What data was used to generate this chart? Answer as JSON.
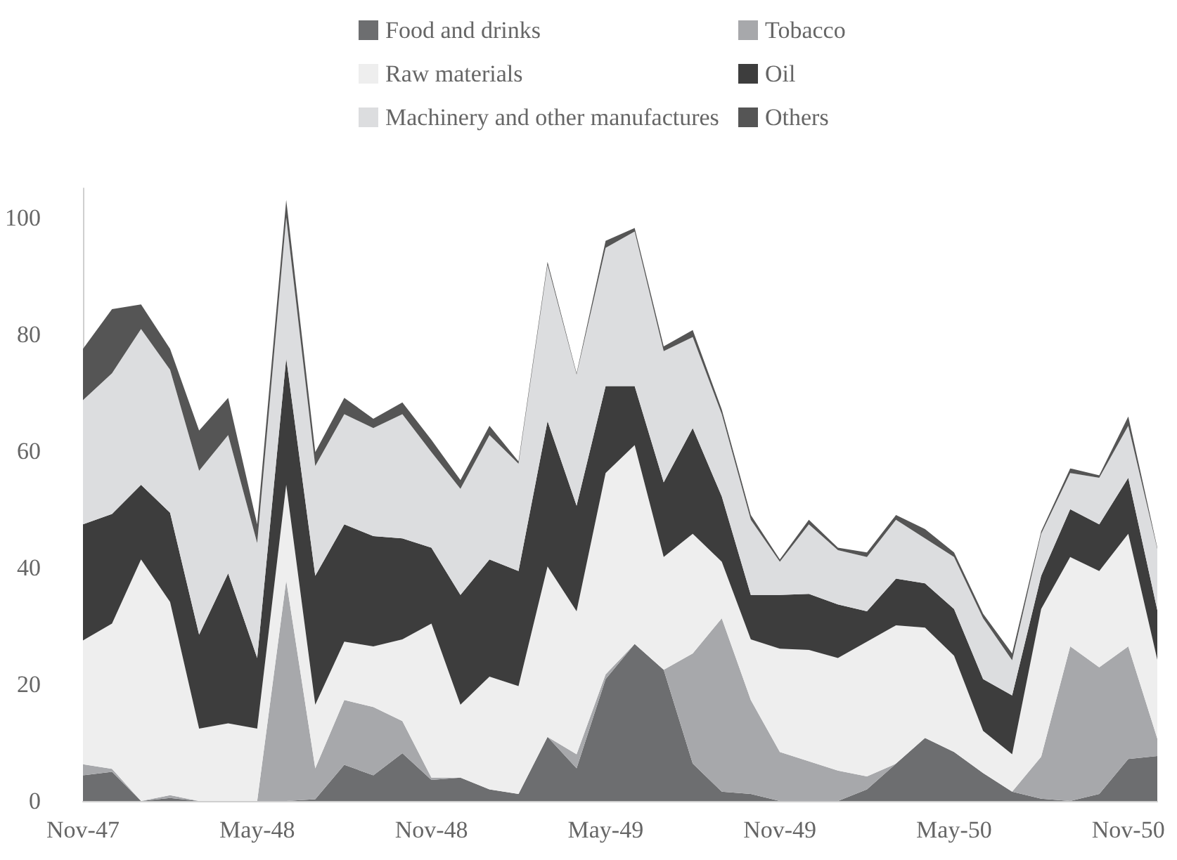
{
  "chart_data": {
    "type": "area",
    "stacked": true,
    "legend": "top",
    "grid": false,
    "categories": [
      "Nov-47",
      null,
      null,
      null,
      null,
      null,
      "May-48",
      null,
      null,
      null,
      null,
      null,
      "Nov-48",
      null,
      null,
      null,
      null,
      null,
      "May-49",
      null,
      null,
      null,
      null,
      null,
      "Nov-49",
      null,
      null,
      null,
      null,
      null,
      "May-50",
      null,
      null,
      null,
      null,
      null,
      "Nov-50",
      null
    ],
    "ylim": [
      0,
      105
    ],
    "yticks": [
      0,
      20,
      40,
      60,
      80,
      100
    ],
    "series": [
      {
        "name": "Food and drinks",
        "color": "#6d6e70",
        "values": [
          4.4,
          5,
          0,
          0.5,
          0,
          0,
          0,
          0,
          0.3,
          6.2,
          4.4,
          8.2,
          3.6,
          4,
          2,
          1.2,
          11,
          5.6,
          20.9,
          26.9,
          22.5,
          6.4,
          1.6,
          1.2,
          0,
          0,
          0,
          2,
          6.4,
          10.8,
          8.4,
          4.8,
          1.6,
          0.4,
          0,
          1.2,
          7.2,
          7.7
        ]
      },
      {
        "name": "Tobacco",
        "color": "#a7a8ab",
        "values": [
          1.9,
          0.5,
          0,
          0.5,
          0,
          0,
          0,
          37.8,
          5.3,
          11.1,
          11.7,
          5.5,
          0.4,
          0,
          0,
          0,
          0,
          2.4,
          0.8,
          0,
          0,
          18.9,
          29.7,
          16.1,
          8.4,
          6.8,
          5.2,
          2.2,
          0,
          0,
          0,
          0,
          0,
          7.2,
          26.5,
          21.7,
          19.3,
          3
        ]
      },
      {
        "name": "Raw materials",
        "color": "#eeeeee",
        "values": [
          21.2,
          24.9,
          41.4,
          33.1,
          12.4,
          13.3,
          12.4,
          16.4,
          10.9,
          10,
          10.4,
          14,
          26.4,
          12.5,
          19.3,
          18.5,
          29.2,
          24.5,
          34.5,
          34.1,
          19.3,
          20.5,
          9.7,
          10.4,
          17.7,
          19.1,
          19.3,
          23.1,
          23.7,
          18.9,
          16.5,
          7.2,
          6.4,
          25.3,
          15.3,
          16.5,
          19.3,
          13.5
        ]
      },
      {
        "name": "Oil",
        "color": "#3d3d3d",
        "values": [
          19.9,
          18.8,
          12.8,
          15.3,
          16.1,
          25.7,
          12.1,
          21.7,
          22.1,
          20.1,
          18.9,
          17.3,
          13,
          18.8,
          20.1,
          19.7,
          24.9,
          18.1,
          14.9,
          10.1,
          12.8,
          18.1,
          11.2,
          7.6,
          9.2,
          9.6,
          9.2,
          5.2,
          8,
          7.6,
          8,
          8.9,
          10.1,
          5.7,
          8.2,
          8,
          9.6,
          8.5
        ]
      },
      {
        "name": "Machinery and other manufactures",
        "color": "#dcdddf",
        "values": [
          21.3,
          24.1,
          26.7,
          24.5,
          28.1,
          23.7,
          19.7,
          24.1,
          18.8,
          18.9,
          18.5,
          21.3,
          16.4,
          18.2,
          21.3,
          18.4,
          26.8,
          22.5,
          23.7,
          26.5,
          22.5,
          15.6,
          14.1,
          12.9,
          5.7,
          11.9,
          9.3,
          9.3,
          10.1,
          7.7,
          8.9,
          10.4,
          6,
          7.2,
          6.2,
          8,
          8.9,
          10.5
        ]
      },
      {
        "name": "Others",
        "color": "#555555",
        "values": [
          8.8,
          11,
          4.2,
          3.6,
          6.9,
          6.4,
          3.2,
          3,
          2.4,
          2.8,
          1.6,
          2,
          2.1,
          1.5,
          1.6,
          0.4,
          0.5,
          0.2,
          1.2,
          0.6,
          0.8,
          1.2,
          0.8,
          0.8,
          0.4,
          0.8,
          0.4,
          0.8,
          0.8,
          1.6,
          0.8,
          0.8,
          1.2,
          0.4,
          0.8,
          0.4,
          1.6,
          0.2
        ]
      }
    ]
  }
}
